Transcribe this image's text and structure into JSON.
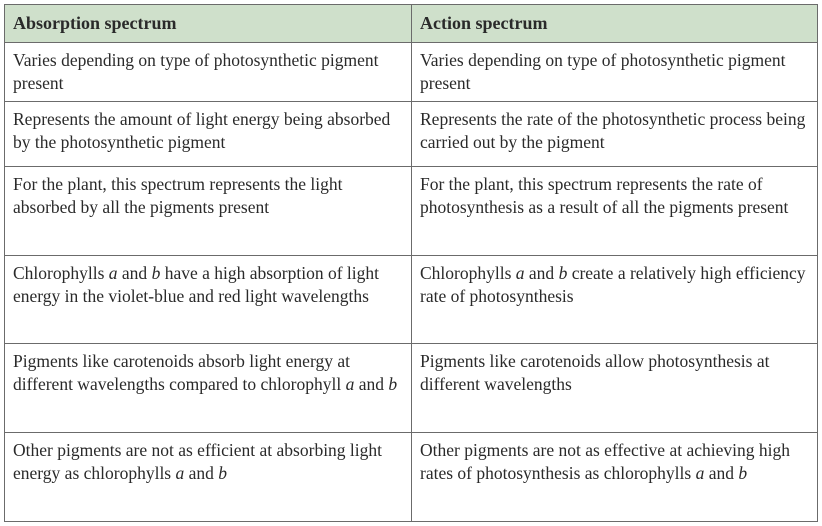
{
  "header": {
    "col1": "Absorption spectrum",
    "col2": "Action spectrum"
  },
  "header_color": "#cfe0cb",
  "rows": [
    [
      [
        {
          "t": "Varies depending on type of photosynthetic pigment present"
        }
      ],
      [
        {
          "t": "Varies depending on type of photosynthetic pigment present"
        }
      ]
    ],
    [
      [
        {
          "t": "Represents the amount of light energy being absorbed by the photosynthetic pigment"
        }
      ],
      [
        {
          "t": "Represents the rate of the photosynthetic process being carried out by the pigment"
        }
      ]
    ],
    [
      [
        {
          "t": "For the plant, this spectrum represents the light absorbed by all the pigments present"
        }
      ],
      [
        {
          "t": "For the plant, this spectrum represents the rate of photosynthesis as a result of all the pigments present"
        }
      ]
    ],
    [
      [
        {
          "t": "Chlorophylls "
        },
        {
          "t": "a",
          "i": true
        },
        {
          "t": " and "
        },
        {
          "t": "b",
          "i": true
        },
        {
          "t": " have a high absorption of light energy in the violet-blue and red light wavelengths"
        }
      ],
      [
        {
          "t": "Chlorophylls "
        },
        {
          "t": "a",
          "i": true
        },
        {
          "t": " and "
        },
        {
          "t": "b",
          "i": true
        },
        {
          "t": " create a relatively high efficiency rate of photosynthesis"
        }
      ]
    ],
    [
      [
        {
          "t": "Pigments like carotenoids absorb light energy at different wavelengths compared to chlorophyll "
        },
        {
          "t": "a",
          "i": true
        },
        {
          "t": " and "
        },
        {
          "t": "b",
          "i": true
        }
      ],
      [
        {
          "t": "Pigments like carotenoids allow photosynthesis at different wavelengths"
        }
      ]
    ],
    [
      [
        {
          "t": "Other pigments are not as efficient at absorbing light energy as chlorophylls "
        },
        {
          "t": "a",
          "i": true
        },
        {
          "t": " and "
        },
        {
          "t": "b",
          "i": true
        }
      ],
      [
        {
          "t": "Other pigments are not as effective at achieving high rates of photosynthesis as chlorophylls "
        },
        {
          "t": "a",
          "i": true
        },
        {
          "t": " and "
        },
        {
          "t": "b",
          "i": true
        }
      ]
    ]
  ]
}
